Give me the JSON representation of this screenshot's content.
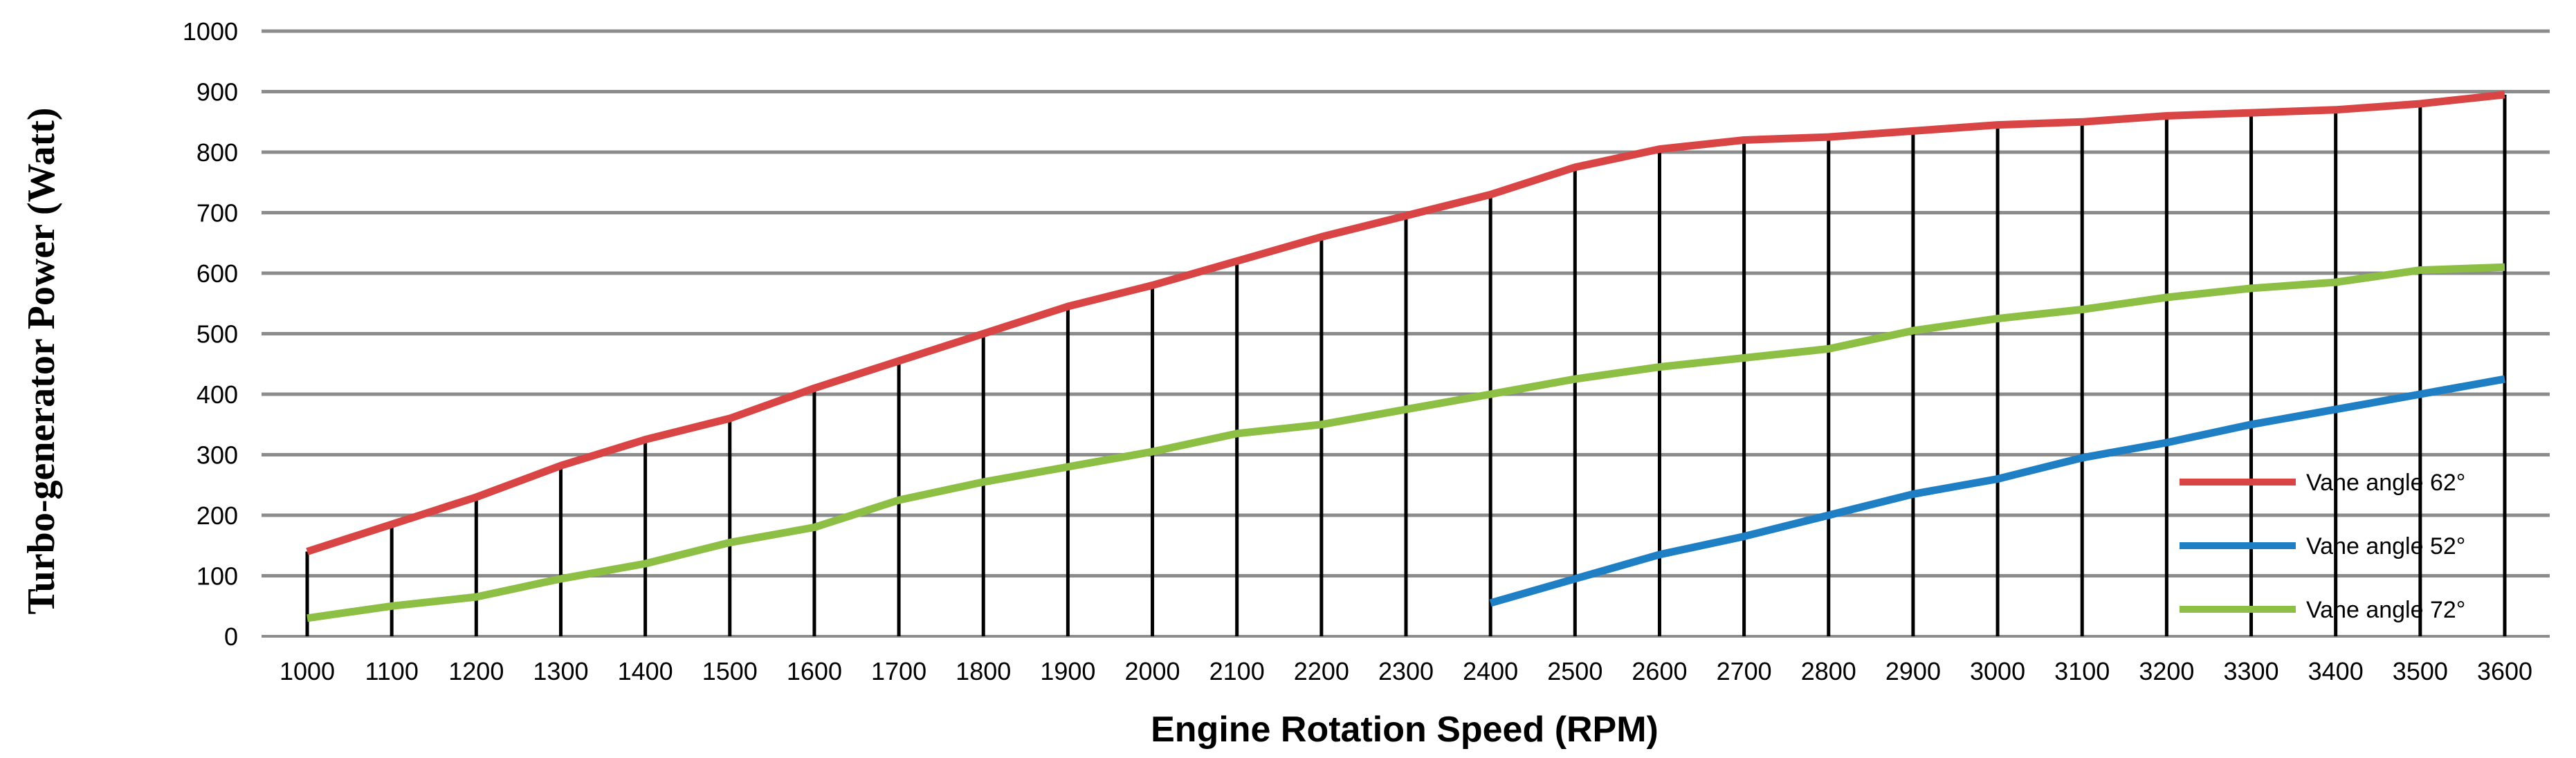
{
  "chart_data": {
    "type": "line",
    "xlabel": "Engine Rotation Speed (RPM)",
    "ylabel": "Turbo-generator Power (Watt)",
    "ylim": [
      0,
      1000
    ],
    "yticks": [
      "0",
      "100",
      "200",
      "300",
      "400",
      "500",
      "600",
      "700",
      "800",
      "900",
      "1000"
    ],
    "x": [
      1000,
      1100,
      1200,
      1300,
      1400,
      1500,
      1600,
      1700,
      1800,
      1900,
      2000,
      2100,
      2200,
      2300,
      2400,
      2500,
      2600,
      2700,
      2800,
      2900,
      3000,
      3100,
      3200,
      3300,
      3400,
      3500,
      3600
    ],
    "xticks": [
      "1000",
      "1100",
      "1200",
      "1300",
      "1400",
      "1500",
      "1600",
      "1700",
      "1800",
      "1900",
      "2000",
      "2100",
      "2200",
      "2300",
      "2400",
      "2500",
      "2600",
      "2700",
      "2800",
      "2900",
      "3000",
      "3100",
      "3200",
      "3300",
      "3400",
      "3500",
      "3600"
    ],
    "grid": true,
    "legend_position": "bottom-right",
    "series": [
      {
        "name": "Vane angle 62°",
        "color": "#d94545",
        "x": [
          1000,
          1100,
          1200,
          1300,
          1400,
          1500,
          1600,
          1700,
          1800,
          1900,
          2000,
          2100,
          2200,
          2300,
          2400,
          2500,
          2600,
          2700,
          2800,
          2900,
          3000,
          3100,
          3200,
          3300,
          3400,
          3500,
          3600
        ],
        "values": [
          140,
          185,
          230,
          282,
          325,
          360,
          410,
          455,
          500,
          545,
          580,
          620,
          660,
          695,
          730,
          775,
          805,
          820,
          825,
          835,
          845,
          850,
          860,
          865,
          870,
          880,
          895
        ]
      },
      {
        "name": "Vane angle 52°",
        "color": "#1e7fc4",
        "x": [
          2400,
          2500,
          2600,
          2700,
          2800,
          2900,
          3000,
          3100,
          3200,
          3300,
          3400,
          3500,
          3600
        ],
        "values": [
          55,
          95,
          135,
          165,
          200,
          235,
          260,
          295,
          320,
          350,
          375,
          400,
          425
        ]
      },
      {
        "name": "Vane angle 72°",
        "color": "#8cbf44",
        "x": [
          1000,
          1100,
          1200,
          1300,
          1400,
          1500,
          1600,
          1700,
          1800,
          1900,
          2000,
          2100,
          2200,
          2300,
          2400,
          2500,
          2600,
          2700,
          2800,
          2900,
          3000,
          3100,
          3200,
          3300,
          3400,
          3500,
          3600
        ],
        "values": [
          30,
          50,
          65,
          95,
          120,
          155,
          180,
          225,
          255,
          280,
          305,
          335,
          350,
          375,
          400,
          425,
          445,
          460,
          475,
          505,
          525,
          540,
          560,
          575,
          585,
          605,
          610
        ]
      }
    ]
  }
}
